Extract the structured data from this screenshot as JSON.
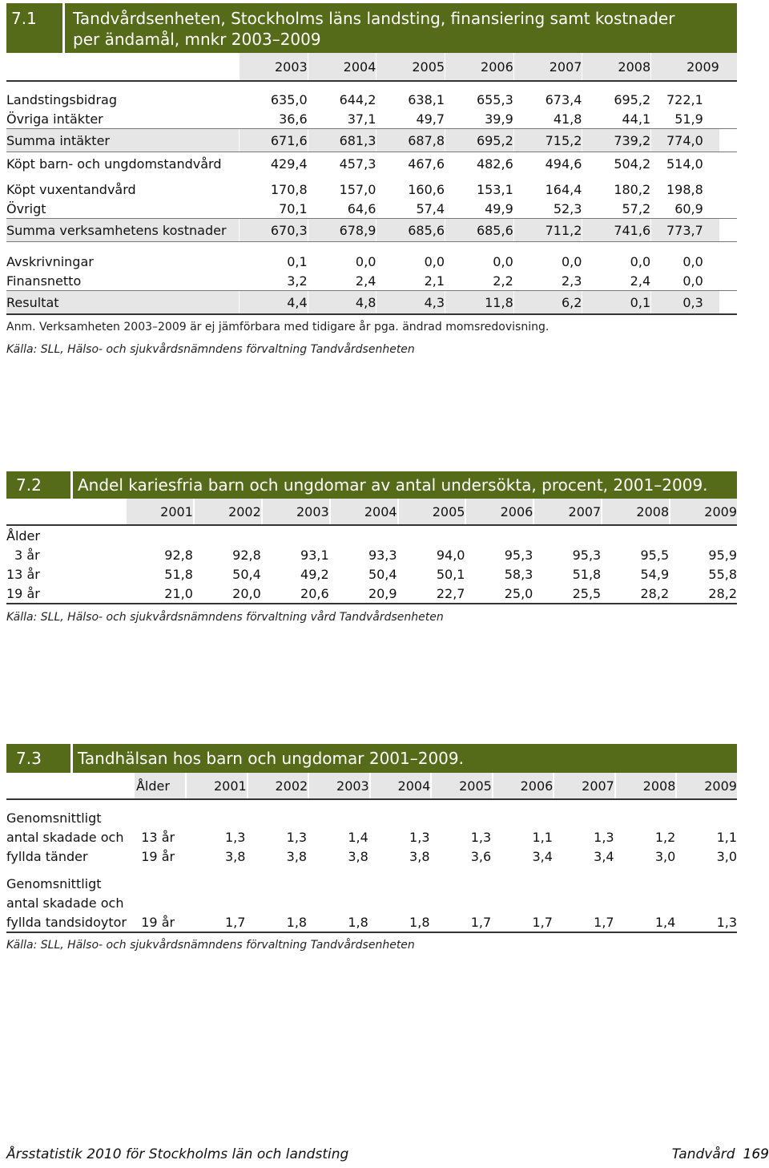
{
  "t1": {
    "num": "7.1",
    "title_line1": "Tandvårdsenheten, Stockholms läns landsting, finansiering samt kostnader",
    "title_line2": "per ändamål, mnkr 2003–2009",
    "years": [
      "2003",
      "2004",
      "2005",
      "2006",
      "2007",
      "2008",
      "2009"
    ],
    "rows": [
      {
        "label": "Landstingsbidrag",
        "values": [
          "635,0",
          "644,2",
          "638,1",
          "655,3",
          "673,4",
          "695,2",
          "722,1"
        ]
      },
      {
        "label": "Övriga intäkter",
        "values": [
          "36,6",
          "37,1",
          "49,7",
          "39,9",
          "41,8",
          "44,1",
          "51,9"
        ]
      },
      {
        "label": "Summa intäkter",
        "values": [
          "671,6",
          "681,3",
          "687,8",
          "695,2",
          "715,2",
          "739,2",
          "774,0"
        ]
      },
      {
        "label": "Köpt barn- och ungdomstandvård",
        "values": [
          "429,4",
          "457,3",
          "467,6",
          "482,6",
          "494,6",
          "504,2",
          "514,0"
        ]
      },
      {
        "label": "Köpt vuxentandvård",
        "values": [
          "170,8",
          "157,0",
          "160,6",
          "153,1",
          "164,4",
          "180,2",
          "198,8"
        ]
      },
      {
        "label": "Övrigt",
        "values": [
          "70,1",
          "64,6",
          "57,4",
          "49,9",
          "52,3",
          "57,2",
          "60,9"
        ]
      },
      {
        "label": "Summa verksamhetens kostnader",
        "values": [
          "670,3",
          "678,9",
          "685,6",
          "685,6",
          "711,2",
          "741,6",
          "773,7"
        ]
      },
      {
        "label": "Avskrivningar",
        "values": [
          "0,1",
          "0,0",
          "0,0",
          "0,0",
          "0,0",
          "0,0",
          "0,0"
        ]
      },
      {
        "label": "Finansnetto",
        "values": [
          "3,2",
          "2,4",
          "2,1",
          "2,2",
          "2,3",
          "2,4",
          "0,0"
        ]
      },
      {
        "label": "Resultat",
        "values": [
          "4,4",
          "4,8",
          "4,3",
          "11,8",
          "6,2",
          "0,1",
          "0,3"
        ]
      }
    ],
    "note": "Anm. Verksamheten 2003–2009 är ej jämförbara med tidigare år pga. ändrad momsredovisning.",
    "source": "Källa: SLL, Hälso- och sjukvårdsnämndens förvaltning Tandvårdsenheten"
  },
  "t2": {
    "num": "7.2",
    "title": "Andel kariesfria barn och ungdomar av antal undersökta, procent, 2001–2009.",
    "years": [
      "2001",
      "2002",
      "2003",
      "2004",
      "2005",
      "2006",
      "2007",
      "2008",
      "2009"
    ],
    "group_label": "Ålder",
    "rows": [
      {
        "label": "3 år",
        "values": [
          "92,8",
          "92,8",
          "93,1",
          "93,3",
          "94,0",
          "95,3",
          "95,3",
          "95,5",
          "95,9"
        ]
      },
      {
        "label": "13 år",
        "values": [
          "51,8",
          "50,4",
          "49,2",
          "50,4",
          "50,1",
          "58,3",
          "51,8",
          "54,9",
          "55,8"
        ]
      },
      {
        "label": "19 år",
        "values": [
          "21,0",
          "20,0",
          "20,6",
          "20,9",
          "22,7",
          "25,0",
          "25,5",
          "28,2",
          "28,2"
        ]
      }
    ],
    "source": "Källa: SLL, Hälso- och sjukvårdsnämndens förvaltning vård Tandvårdsenheten"
  },
  "t3": {
    "num": "7.3",
    "title": "Tandhälsan hos barn och ungdomar 2001–2009.",
    "age_header": "Ålder",
    "years": [
      "2001",
      "2002",
      "2003",
      "2004",
      "2005",
      "2006",
      "2007",
      "2008",
      "2009"
    ],
    "g1_label_1": "Genomsnittligt",
    "g1_label_2": "antal skadade och",
    "g1_label_3": "fyllda tänder",
    "g1_rows": [
      {
        "age": "13 år",
        "values": [
          "1,3",
          "1,3",
          "1,4",
          "1,3",
          "1,3",
          "1,1",
          "1,3",
          "1,2",
          "1,1"
        ]
      },
      {
        "age": "19 år",
        "values": [
          "3,8",
          "3,8",
          "3,8",
          "3,8",
          "3,6",
          "3,4",
          "3,4",
          "3,0",
          "3,0"
        ]
      }
    ],
    "g2_label_1": "Genomsnittligt",
    "g2_label_2": "antal skadade och",
    "g2_label_3": "fyllda tandsidoytor",
    "g2_row": {
      "age": "19 år",
      "values": [
        "1,7",
        "1,8",
        "1,8",
        "1,8",
        "1,7",
        "1,7",
        "1,7",
        "1,4",
        "1,3"
      ]
    },
    "source": "Källa: SLL, Hälso- och sjukvårdsnämndens förvaltning Tandvårdsenheten"
  },
  "footer": {
    "left": "Årsstatistik 2010 för Stockholms län och landsting",
    "section": "Tandvård",
    "page": "169"
  }
}
